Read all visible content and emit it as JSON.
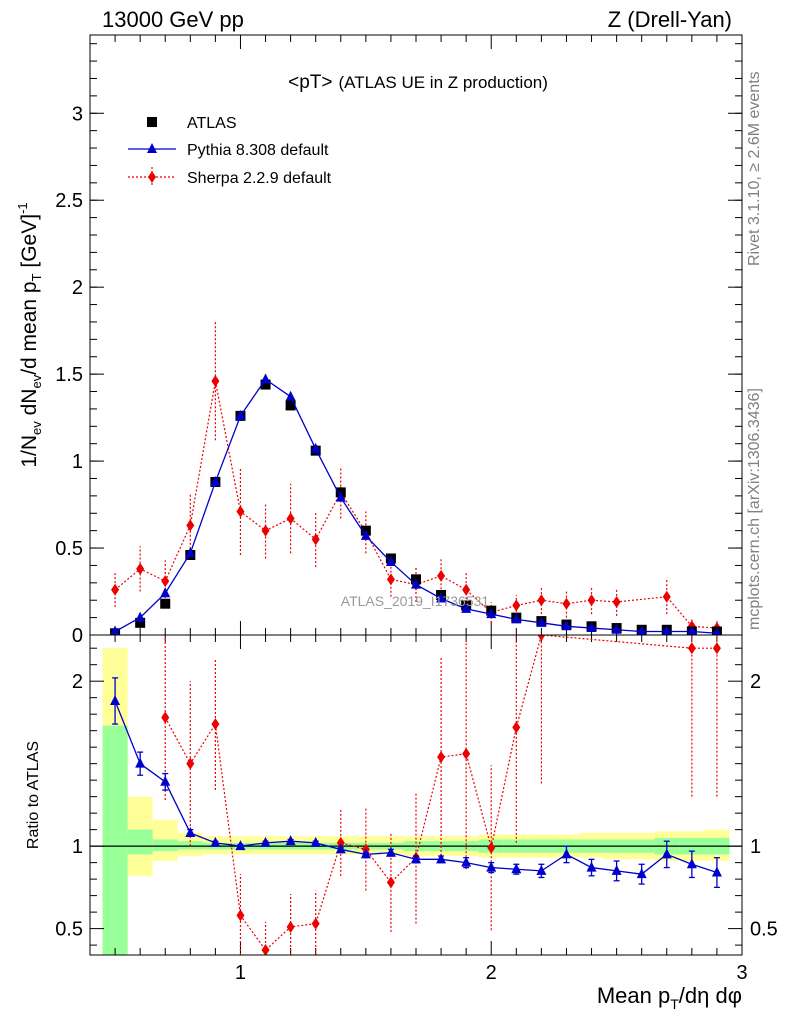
{
  "header": {
    "left": "13000 GeV pp",
    "right": "Z (Drell-Yan)"
  },
  "side_labels": {
    "rivet": "Rivet 3.1.10, ≥ 2.6M events",
    "mcplots": "mcplots.cern.ch [arXiv:1306.3436]"
  },
  "watermark": "ATLAS_2019_I1736531",
  "chart_data": {
    "type": "scatter",
    "title": "<pT>",
    "subtitle": "(ATLAS UE in Z production)",
    "xlabel": "Mean p_T/dη dφ",
    "xlim": [
      0.4,
      3.0
    ],
    "x_ticks": [
      1,
      2,
      3
    ],
    "main_panel": {
      "ylabel": "1/N_ev dN_ev/d mean p_T [GeV]^-1",
      "ylim": [
        0,
        3.45
      ],
      "y_ticks": [
        0,
        0.5,
        1,
        1.5,
        2,
        2.5,
        3
      ],
      "y_tick_labels": [
        "0",
        "0.5",
        "1",
        "1.5",
        "2",
        "2.5",
        "3"
      ],
      "legend": {
        "position": "top-left",
        "entries": [
          "ATLAS",
          "Pythia 8.308 default",
          "Sherpa 2.2.9 default"
        ]
      },
      "series": [
        {
          "name": "ATLAS",
          "color": "#000000",
          "marker": "square",
          "x": [
            0.5,
            0.6,
            0.7,
            0.8,
            0.9,
            1.0,
            1.1,
            1.2,
            1.3,
            1.4,
            1.5,
            1.6,
            1.7,
            1.8,
            1.9,
            2.0,
            2.1,
            2.2,
            2.3,
            2.4,
            2.5,
            2.6,
            2.7,
            2.8,
            2.9
          ],
          "values": [
            0.01,
            0.07,
            0.18,
            0.46,
            0.88,
            1.26,
            1.44,
            1.32,
            1.06,
            0.82,
            0.6,
            0.44,
            0.32,
            0.23,
            0.17,
            0.14,
            0.1,
            0.08,
            0.06,
            0.05,
            0.04,
            0.03,
            0.03,
            0.02,
            0.02
          ]
        },
        {
          "name": "Pythia 8.308 default",
          "color": "#0000cc",
          "marker": "triangle",
          "x": [
            0.5,
            0.6,
            0.7,
            0.8,
            0.9,
            1.0,
            1.1,
            1.2,
            1.3,
            1.4,
            1.5,
            1.6,
            1.7,
            1.8,
            1.9,
            2.0,
            2.1,
            2.2,
            2.3,
            2.4,
            2.5,
            2.6,
            2.7,
            2.8,
            2.9
          ],
          "values": [
            0.02,
            0.1,
            0.24,
            0.47,
            0.88,
            1.26,
            1.47,
            1.37,
            1.07,
            0.79,
            0.57,
            0.42,
            0.29,
            0.21,
            0.15,
            0.12,
            0.09,
            0.07,
            0.05,
            0.04,
            0.03,
            0.02,
            0.02,
            0.02,
            0.01
          ],
          "errors": [
            0.01,
            0.01,
            0.01,
            0.01,
            0.01,
            0.01,
            0.01,
            0.01,
            0.01,
            0.01,
            0.01,
            0.01,
            0.01,
            0.01,
            0.01,
            0.01,
            0.01,
            0.01,
            0.01,
            0.01,
            0.01,
            0.01,
            0.01,
            0.01,
            0.01
          ]
        },
        {
          "name": "Sherpa 2.2.9 default",
          "color": "#ee0000",
          "marker": "diamond",
          "x": [
            0.5,
            0.6,
            0.7,
            0.8,
            0.9,
            1.0,
            1.1,
            1.2,
            1.3,
            1.4,
            1.5,
            1.6,
            1.7,
            1.8,
            1.9,
            2.0,
            2.1,
            2.2,
            2.3,
            2.4,
            2.5,
            2.7,
            2.8,
            2.9
          ],
          "values": [
            0.26,
            0.38,
            0.31,
            0.63,
            1.46,
            0.71,
            0.6,
            0.67,
            0.55,
            0.82,
            0.59,
            0.32,
            0.29,
            0.34,
            0.26,
            0.13,
            0.17,
            0.2,
            0.18,
            0.2,
            0.19,
            0.22,
            0.05,
            0.04
          ],
          "errors": [
            0.1,
            0.13,
            0.12,
            0.18,
            0.34,
            0.25,
            0.16,
            0.2,
            0.16,
            0.15,
            0.12,
            0.1,
            0.1,
            0.1,
            0.1,
            0.06,
            0.06,
            0.08,
            0.08,
            0.08,
            0.08,
            0.1,
            0.04,
            0.04
          ]
        }
      ]
    },
    "ratio_panel": {
      "ylabel": "Ratio to ATLAS",
      "ylim": [
        0.34,
        2.28
      ],
      "y_ticks": [
        0.5,
        1,
        2
      ],
      "y_tick_labels": [
        "0.5",
        "1",
        "2"
      ],
      "reference_line": 1,
      "band_edges": [
        0.45,
        0.55,
        0.65,
        0.75,
        0.85,
        0.95,
        1.05,
        1.15,
        1.25,
        1.35,
        1.45,
        1.55,
        1.65,
        1.75,
        1.85,
        1.95,
        2.05,
        2.15,
        2.25,
        2.35,
        2.45,
        2.55,
        2.65,
        2.75,
        2.85,
        2.95
      ],
      "stat_band": {
        "color": "#99ff99",
        "low": [
          0.3,
          0.95,
          0.97,
          0.98,
          0.98,
          0.98,
          0.98,
          0.98,
          0.98,
          0.98,
          0.98,
          0.98,
          0.97,
          0.97,
          0.97,
          0.96,
          0.96,
          0.96,
          0.96,
          0.96,
          0.96,
          0.96,
          0.95,
          0.95,
          0.95
        ],
        "high": [
          1.73,
          1.1,
          1.04,
          1.03,
          1.02,
          1.02,
          1.02,
          1.02,
          1.02,
          1.02,
          1.02,
          1.02,
          1.03,
          1.03,
          1.03,
          1.04,
          1.04,
          1.04,
          1.04,
          1.04,
          1.04,
          1.04,
          1.05,
          1.05,
          1.05
        ]
      },
      "total_band": {
        "color": "#ffff99",
        "low": [
          0.3,
          0.82,
          0.91,
          0.94,
          0.95,
          0.95,
          0.95,
          0.95,
          0.95,
          0.95,
          0.95,
          0.95,
          0.94,
          0.94,
          0.94,
          0.93,
          0.93,
          0.93,
          0.93,
          0.93,
          0.92,
          0.92,
          0.91,
          0.91,
          0.91
        ],
        "high": [
          2.2,
          1.3,
          1.16,
          1.08,
          1.06,
          1.06,
          1.06,
          1.06,
          1.06,
          1.06,
          1.06,
          1.06,
          1.06,
          1.06,
          1.06,
          1.07,
          1.07,
          1.07,
          1.07,
          1.08,
          1.08,
          1.08,
          1.09,
          1.09,
          1.1
        ]
      },
      "series": [
        {
          "name": "Pythia 8.308 default",
          "color": "#0000cc",
          "marker": "triangle",
          "x": [
            0.5,
            0.6,
            0.7,
            0.8,
            0.9,
            1.0,
            1.1,
            1.2,
            1.3,
            1.4,
            1.5,
            1.6,
            1.7,
            1.8,
            1.9,
            2.0,
            2.1,
            2.2,
            2.3,
            2.4,
            2.5,
            2.6,
            2.7,
            2.8,
            2.9
          ],
          "values": [
            1.88,
            1.5,
            1.39,
            1.08,
            1.02,
            1.0,
            1.02,
            1.03,
            1.02,
            0.98,
            0.95,
            0.96,
            0.92,
            0.92,
            0.9,
            0.87,
            0.86,
            0.85,
            0.95,
            0.87,
            0.85,
            0.83,
            0.95,
            0.89,
            0.84
          ],
          "errors": [
            0.14,
            0.07,
            0.05,
            0.02,
            0.01,
            0.01,
            0.01,
            0.01,
            0.01,
            0.01,
            0.01,
            0.02,
            0.02,
            0.02,
            0.03,
            0.03,
            0.03,
            0.04,
            0.05,
            0.05,
            0.06,
            0.06,
            0.08,
            0.08,
            0.09
          ]
        },
        {
          "name": "Sherpa 2.2.9 default",
          "color": "#ee0000",
          "marker": "diamond",
          "x": [
            0.7,
            0.8,
            0.9,
            1.0,
            1.1,
            1.2,
            1.3,
            1.4,
            1.5,
            1.6,
            1.7,
            1.8,
            1.9,
            2.0,
            2.1,
            2.2,
            2.8,
            2.9
          ],
          "values": [
            1.78,
            1.5,
            1.74,
            0.58,
            0.37,
            0.51,
            0.53,
            1.02,
            0.98,
            0.78,
            0.93,
            1.54,
            1.56,
            0.99,
            1.72,
            2.28,
            2.2,
            2.2
          ],
          "errors": [
            0.5,
            0.5,
            0.4,
            0.25,
            0.17,
            0.2,
            0.2,
            0.2,
            0.25,
            0.3,
            0.4,
            0.6,
            0.7,
            0.5,
            0.7,
            0.9,
            0.9,
            0.9
          ]
        }
      ]
    }
  }
}
